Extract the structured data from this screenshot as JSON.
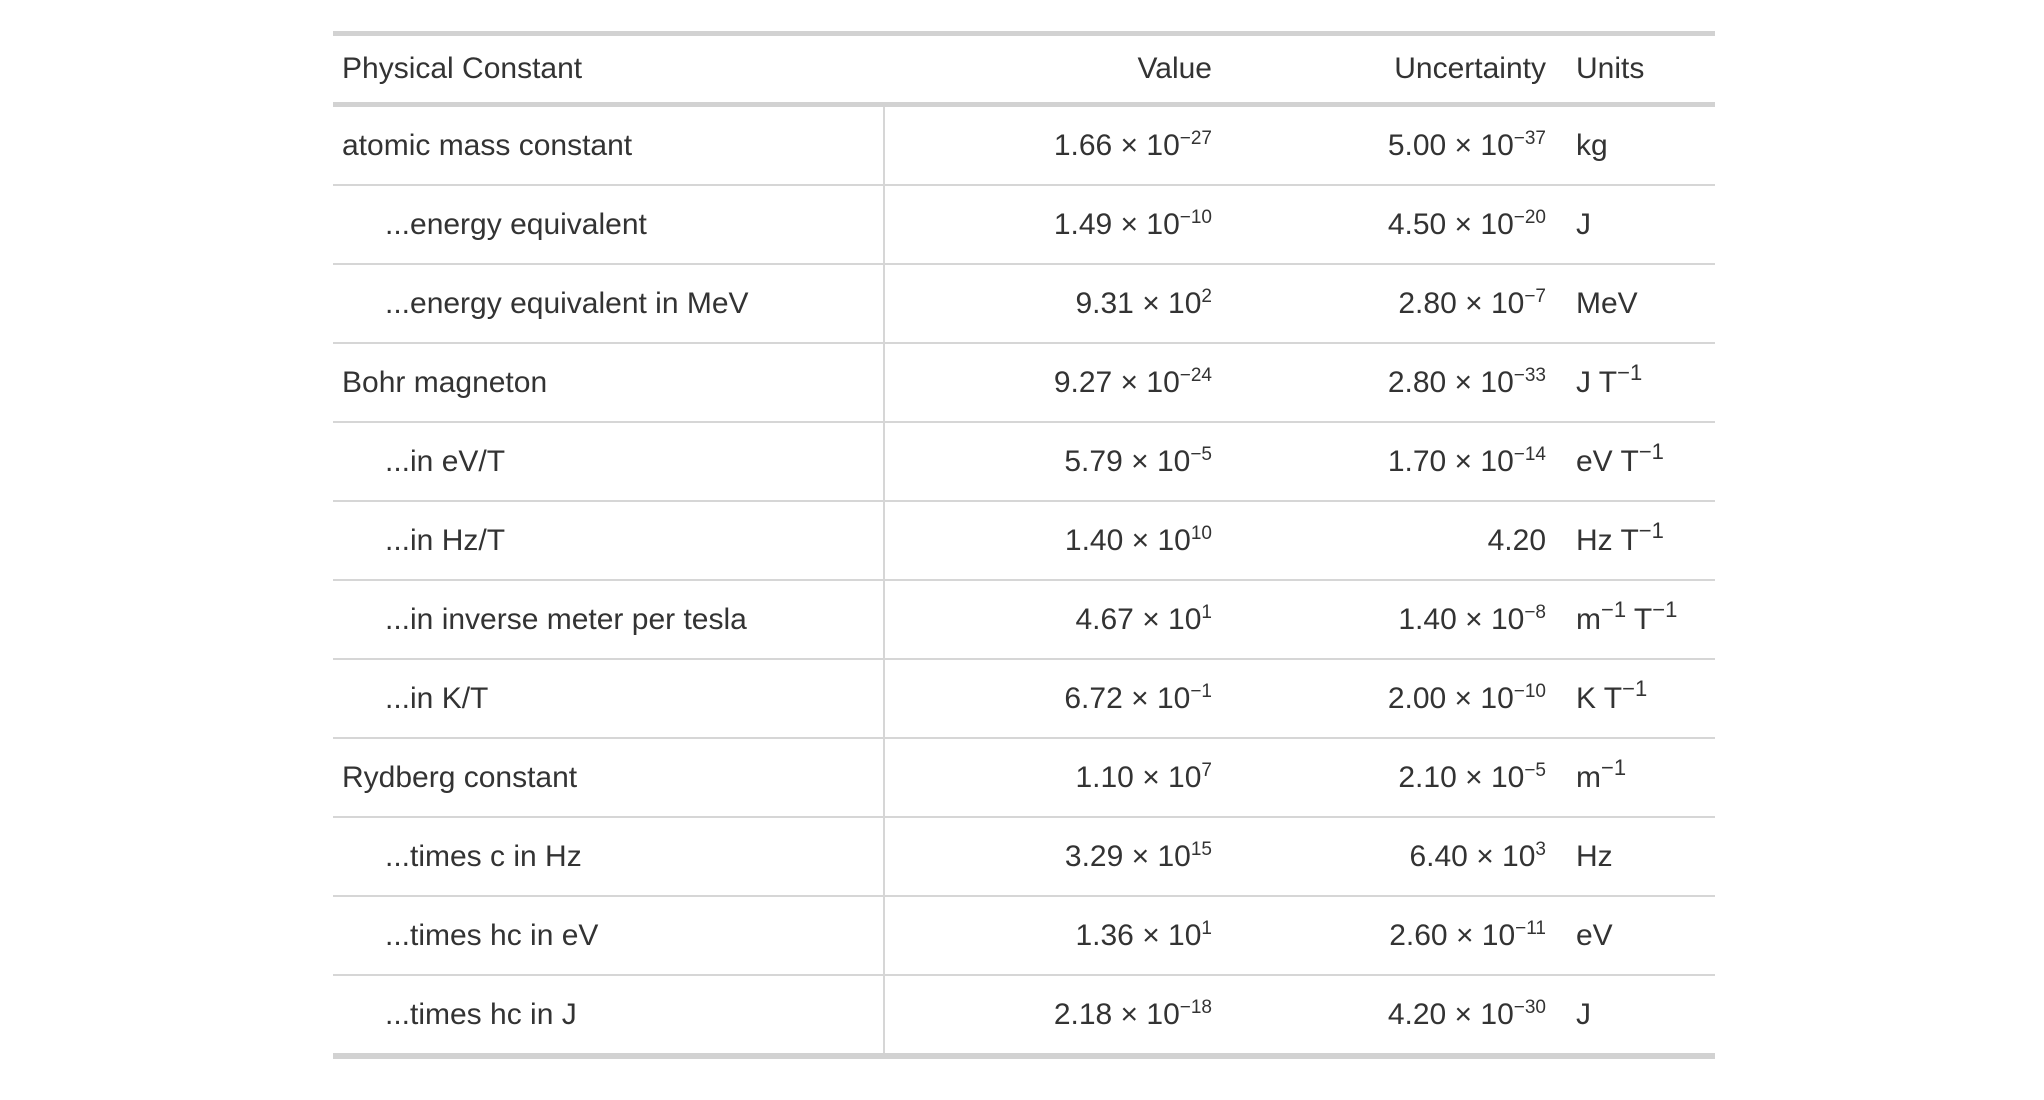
{
  "chart_data": {
    "type": "table",
    "columns": [
      "Physical Constant",
      "Value",
      "Uncertainty",
      "Units"
    ],
    "rows": [
      [
        "atomic mass constant",
        "1.66 × 10⁻²⁷",
        "5.00 × 10⁻³⁷",
        "kg"
      ],
      [
        "...energy equivalent",
        "1.49 × 10⁻¹⁰",
        "4.50 × 10⁻²⁰",
        "J"
      ],
      [
        "...energy equivalent in MeV",
        "9.31 × 10²",
        "2.80 × 10⁻⁷",
        "MeV"
      ],
      [
        "Bohr magneton",
        "9.27 × 10⁻²⁴",
        "2.80 × 10⁻³³",
        "J T⁻¹"
      ],
      [
        "...in eV/T",
        "5.79 × 10⁻⁵",
        "1.70 × 10⁻¹⁴",
        "eV T⁻¹"
      ],
      [
        "...in Hz/T",
        "1.40 × 10¹⁰",
        "4.20",
        "Hz T⁻¹"
      ],
      [
        "...in inverse meter per tesla",
        "4.67 × 10¹",
        "1.40 × 10⁻⁸",
        "m⁻¹ T⁻¹"
      ],
      [
        "...in K/T",
        "6.72 × 10⁻¹",
        "2.00 × 10⁻¹⁰",
        "K T⁻¹"
      ],
      [
        "Rydberg constant",
        "1.10 × 10⁷",
        "2.10 × 10⁻⁵",
        "m⁻¹"
      ],
      [
        "...times c in Hz",
        "3.29 × 10¹⁵",
        "6.40 × 10³",
        "Hz"
      ],
      [
        "...times hc in eV",
        "1.36 × 10¹",
        "2.60 × 10⁻¹¹",
        "eV"
      ],
      [
        "...times hc in J",
        "2.18 × 10⁻¹⁸",
        "4.20 × 10⁻³⁰",
        "J"
      ]
    ]
  },
  "table": {
    "columns": [
      {
        "label": "Physical Constant"
      },
      {
        "label": "Value"
      },
      {
        "label": "Uncertainty"
      },
      {
        "label": "Units"
      }
    ],
    "times_symbol": "×",
    "base": "10",
    "colors": {
      "text": "#333333",
      "background": "#ffffff",
      "outer_border": "#d2d2d2",
      "row_border": "#d6d6d6"
    },
    "rows": [
      {
        "name": "atomic mass constant",
        "indent": false,
        "value": {
          "m": "1.66",
          "e": "−27"
        },
        "uncertainty": {
          "m": "5.00",
          "e": "−37"
        },
        "units": [
          {
            "t": "kg"
          }
        ]
      },
      {
        "name": "...energy equivalent",
        "indent": true,
        "value": {
          "m": "1.49",
          "e": "−10"
        },
        "uncertainty": {
          "m": "4.50",
          "e": "−20"
        },
        "units": [
          {
            "t": "J"
          }
        ]
      },
      {
        "name": "...energy equivalent in MeV",
        "indent": true,
        "value": {
          "m": "9.31",
          "e": "2"
        },
        "uncertainty": {
          "m": "2.80",
          "e": "−7"
        },
        "units": [
          {
            "t": "MeV"
          }
        ]
      },
      {
        "name": "Bohr magneton",
        "indent": false,
        "value": {
          "m": "9.27",
          "e": "−24"
        },
        "uncertainty": {
          "m": "2.80",
          "e": "−33"
        },
        "units": [
          {
            "t": "J T",
            "sup": "−1"
          }
        ]
      },
      {
        "name": "...in eV/T",
        "indent": true,
        "value": {
          "m": "5.79",
          "e": "−5"
        },
        "uncertainty": {
          "m": "1.70",
          "e": "−14"
        },
        "units": [
          {
            "t": "eV T",
            "sup": "−1"
          }
        ]
      },
      {
        "name": "...in Hz/T",
        "indent": true,
        "value": {
          "m": "1.40",
          "e": "10"
        },
        "uncertainty": {
          "m": "4.20"
        },
        "units": [
          {
            "t": "Hz T",
            "sup": "−1"
          }
        ]
      },
      {
        "name": "...in inverse meter per tesla",
        "indent": true,
        "value": {
          "m": "4.67",
          "e": "1"
        },
        "uncertainty": {
          "m": "1.40",
          "e": "−8"
        },
        "units": [
          {
            "t": "m",
            "sup": "−1"
          },
          {
            "t": " T",
            "sup": "−1"
          }
        ]
      },
      {
        "name": "...in K/T",
        "indent": true,
        "value": {
          "m": "6.72",
          "e": "−1"
        },
        "uncertainty": {
          "m": "2.00",
          "e": "−10"
        },
        "units": [
          {
            "t": "K T",
            "sup": "−1"
          }
        ]
      },
      {
        "name": "Rydberg constant",
        "indent": false,
        "value": {
          "m": "1.10",
          "e": "7"
        },
        "uncertainty": {
          "m": "2.10",
          "e": "−5"
        },
        "units": [
          {
            "t": "m",
            "sup": "−1"
          }
        ]
      },
      {
        "name": "...times c in Hz",
        "indent": true,
        "value": {
          "m": "3.29",
          "e": "15"
        },
        "uncertainty": {
          "m": "6.40",
          "e": "3"
        },
        "units": [
          {
            "t": "Hz"
          }
        ]
      },
      {
        "name": "...times hc in eV",
        "indent": true,
        "value": {
          "m": "1.36",
          "e": "1"
        },
        "uncertainty": {
          "m": "2.60",
          "e": "−11"
        },
        "units": [
          {
            "t": "eV"
          }
        ]
      },
      {
        "name": "...times hc in J",
        "indent": true,
        "value": {
          "m": "2.18",
          "e": "−18"
        },
        "uncertainty": {
          "m": "4.20",
          "e": "−30"
        },
        "units": [
          {
            "t": "J"
          }
        ]
      }
    ]
  }
}
